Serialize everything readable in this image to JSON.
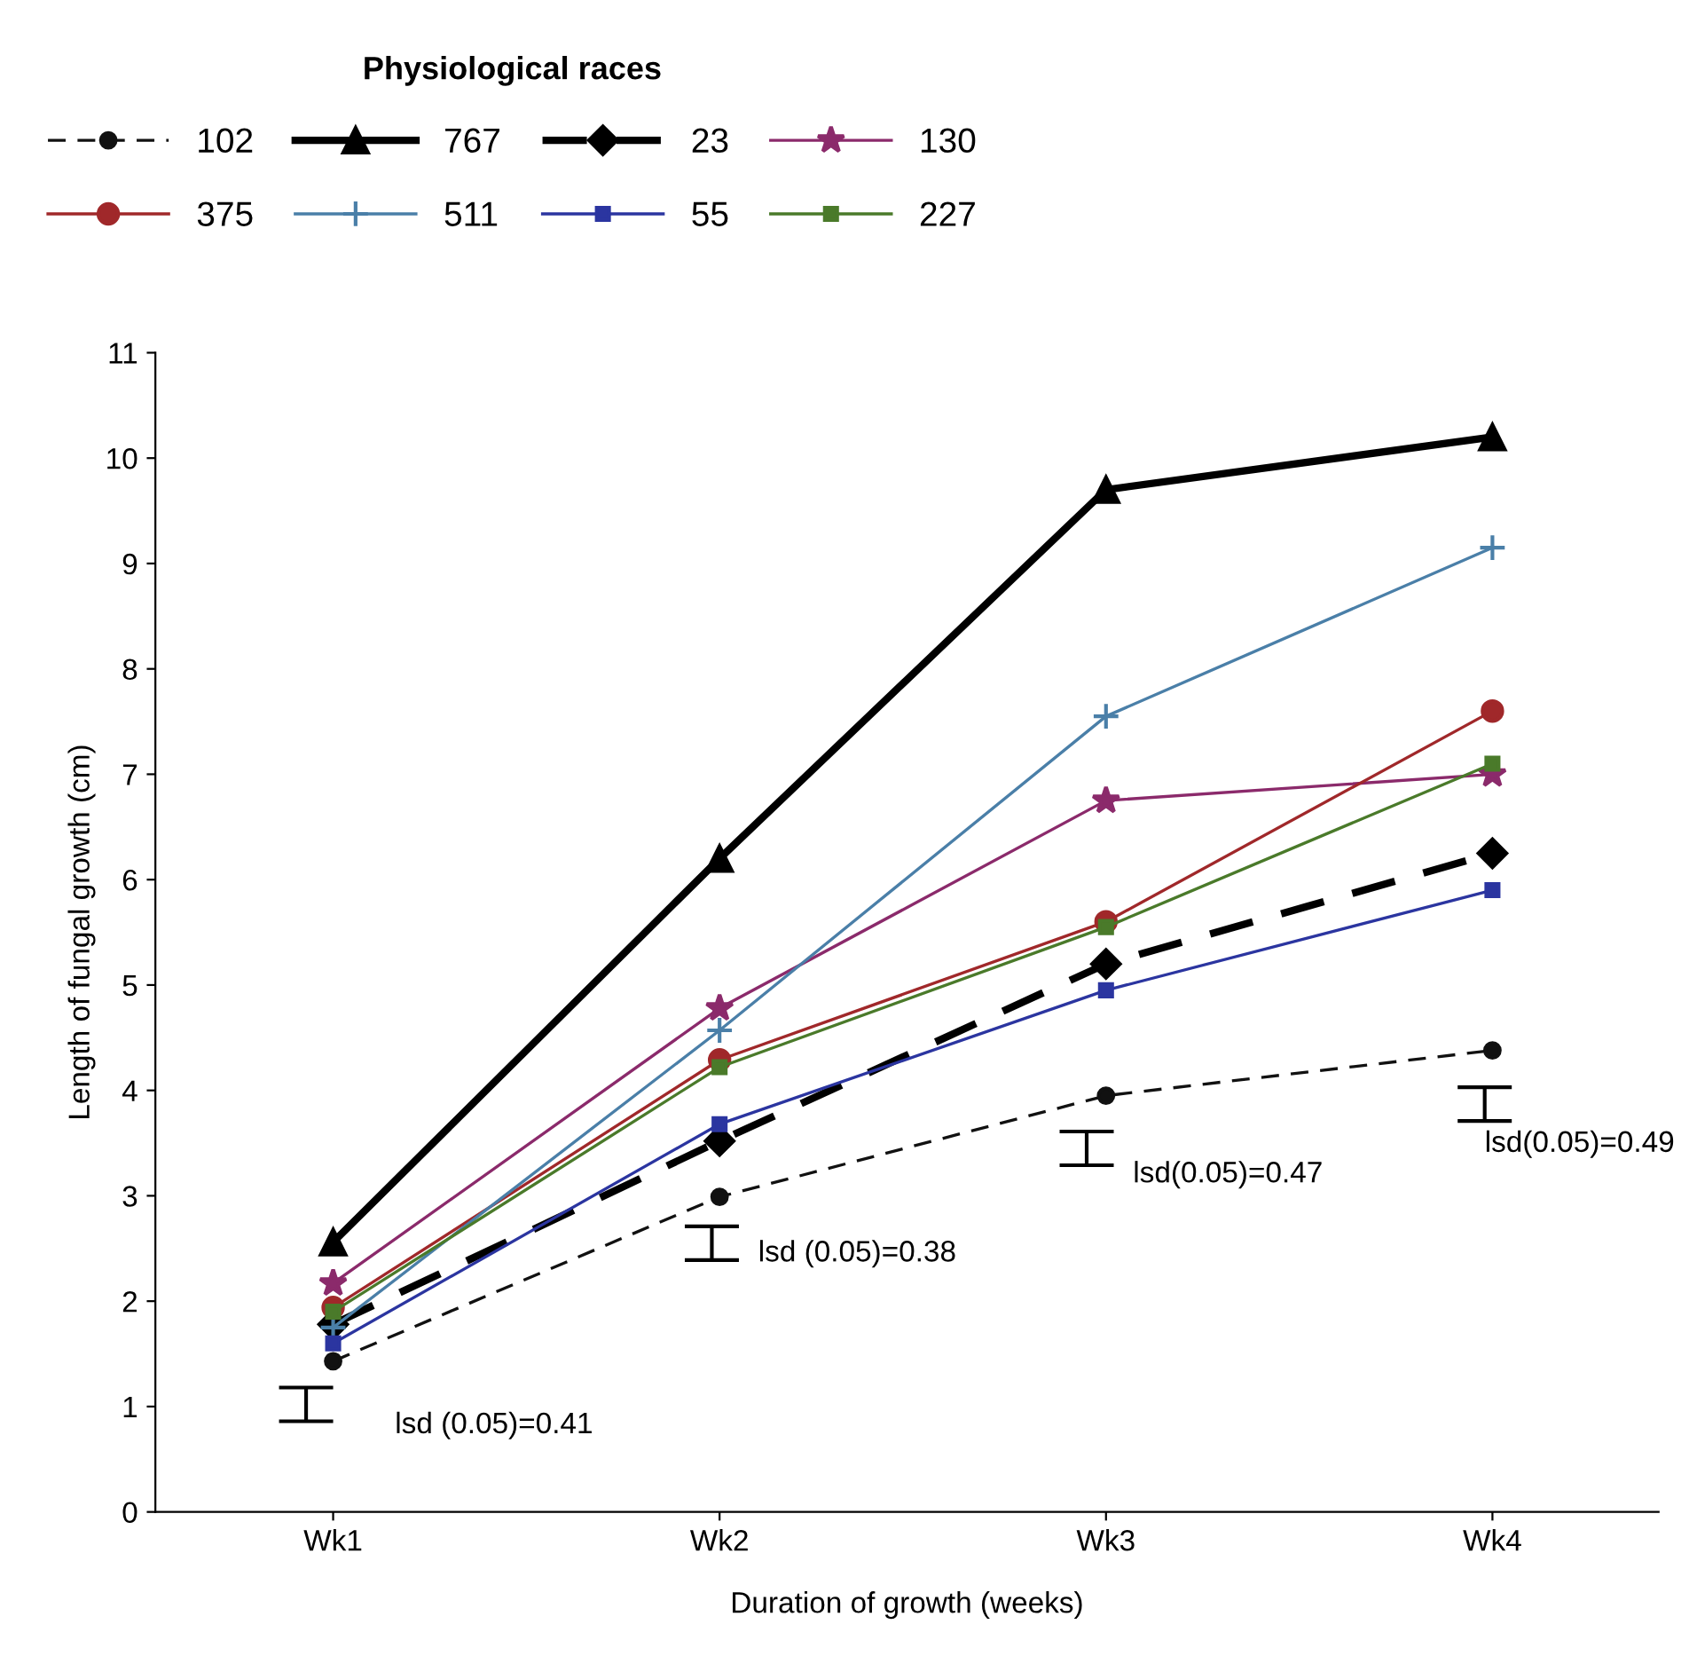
{
  "chart_data": {
    "type": "line",
    "xlabel": "Duration of growth (weeks)",
    "ylabel": "Length of fungal growth (cm)",
    "legend_title": "Physiological races",
    "legend": "top left",
    "grid": false,
    "categories": [
      "Wk1",
      "Wk2",
      "Wk3",
      "Wk4"
    ],
    "ylim": [
      0,
      11
    ],
    "yticks": [
      0,
      1,
      2,
      3,
      4,
      5,
      6,
      7,
      8,
      9,
      10,
      11
    ],
    "series": [
      {
        "name": "102",
        "color": "#111111",
        "marker": "circle",
        "line_style": "dashed",
        "values": [
          1.43,
          2.99,
          3.95,
          4.38
        ]
      },
      {
        "name": "767",
        "color": "#000000",
        "marker": "triangle",
        "line_style": "solid",
        "values": [
          2.56,
          6.2,
          9.7,
          10.2
        ]
      },
      {
        "name": "23",
        "color": "#000000",
        "marker": "diamond",
        "line_style": "dashed",
        "values": [
          1.78,
          3.52,
          5.2,
          6.25
        ]
      },
      {
        "name": "130",
        "color": "#8b2a6b",
        "marker": "star",
        "line_style": "solid",
        "values": [
          2.17,
          4.78,
          6.75,
          7.0
        ]
      },
      {
        "name": "375",
        "color": "#a0282a",
        "marker": "circle",
        "line_style": "solid",
        "values": [
          1.94,
          4.29,
          5.6,
          7.6
        ]
      },
      {
        "name": "511",
        "color": "#4a7fa8",
        "marker": "cross",
        "line_style": "solid",
        "values": [
          1.75,
          4.57,
          7.55,
          9.15
        ]
      },
      {
        "name": "55",
        "color": "#2b35a0",
        "marker": "square",
        "line_style": "solid",
        "values": [
          1.6,
          3.68,
          4.95,
          5.9
        ]
      },
      {
        "name": "227",
        "color": "#4a7a2a",
        "marker": "square",
        "line_style": "solid",
        "values": [
          1.9,
          4.22,
          5.55,
          7.1
        ]
      }
    ],
    "annotations": [
      "lsd (0.05)=0.41",
      "lsd (0.05)=0.38",
      "lsd(0.05)=0.47",
      "lsd(0.05)=0.49"
    ]
  }
}
